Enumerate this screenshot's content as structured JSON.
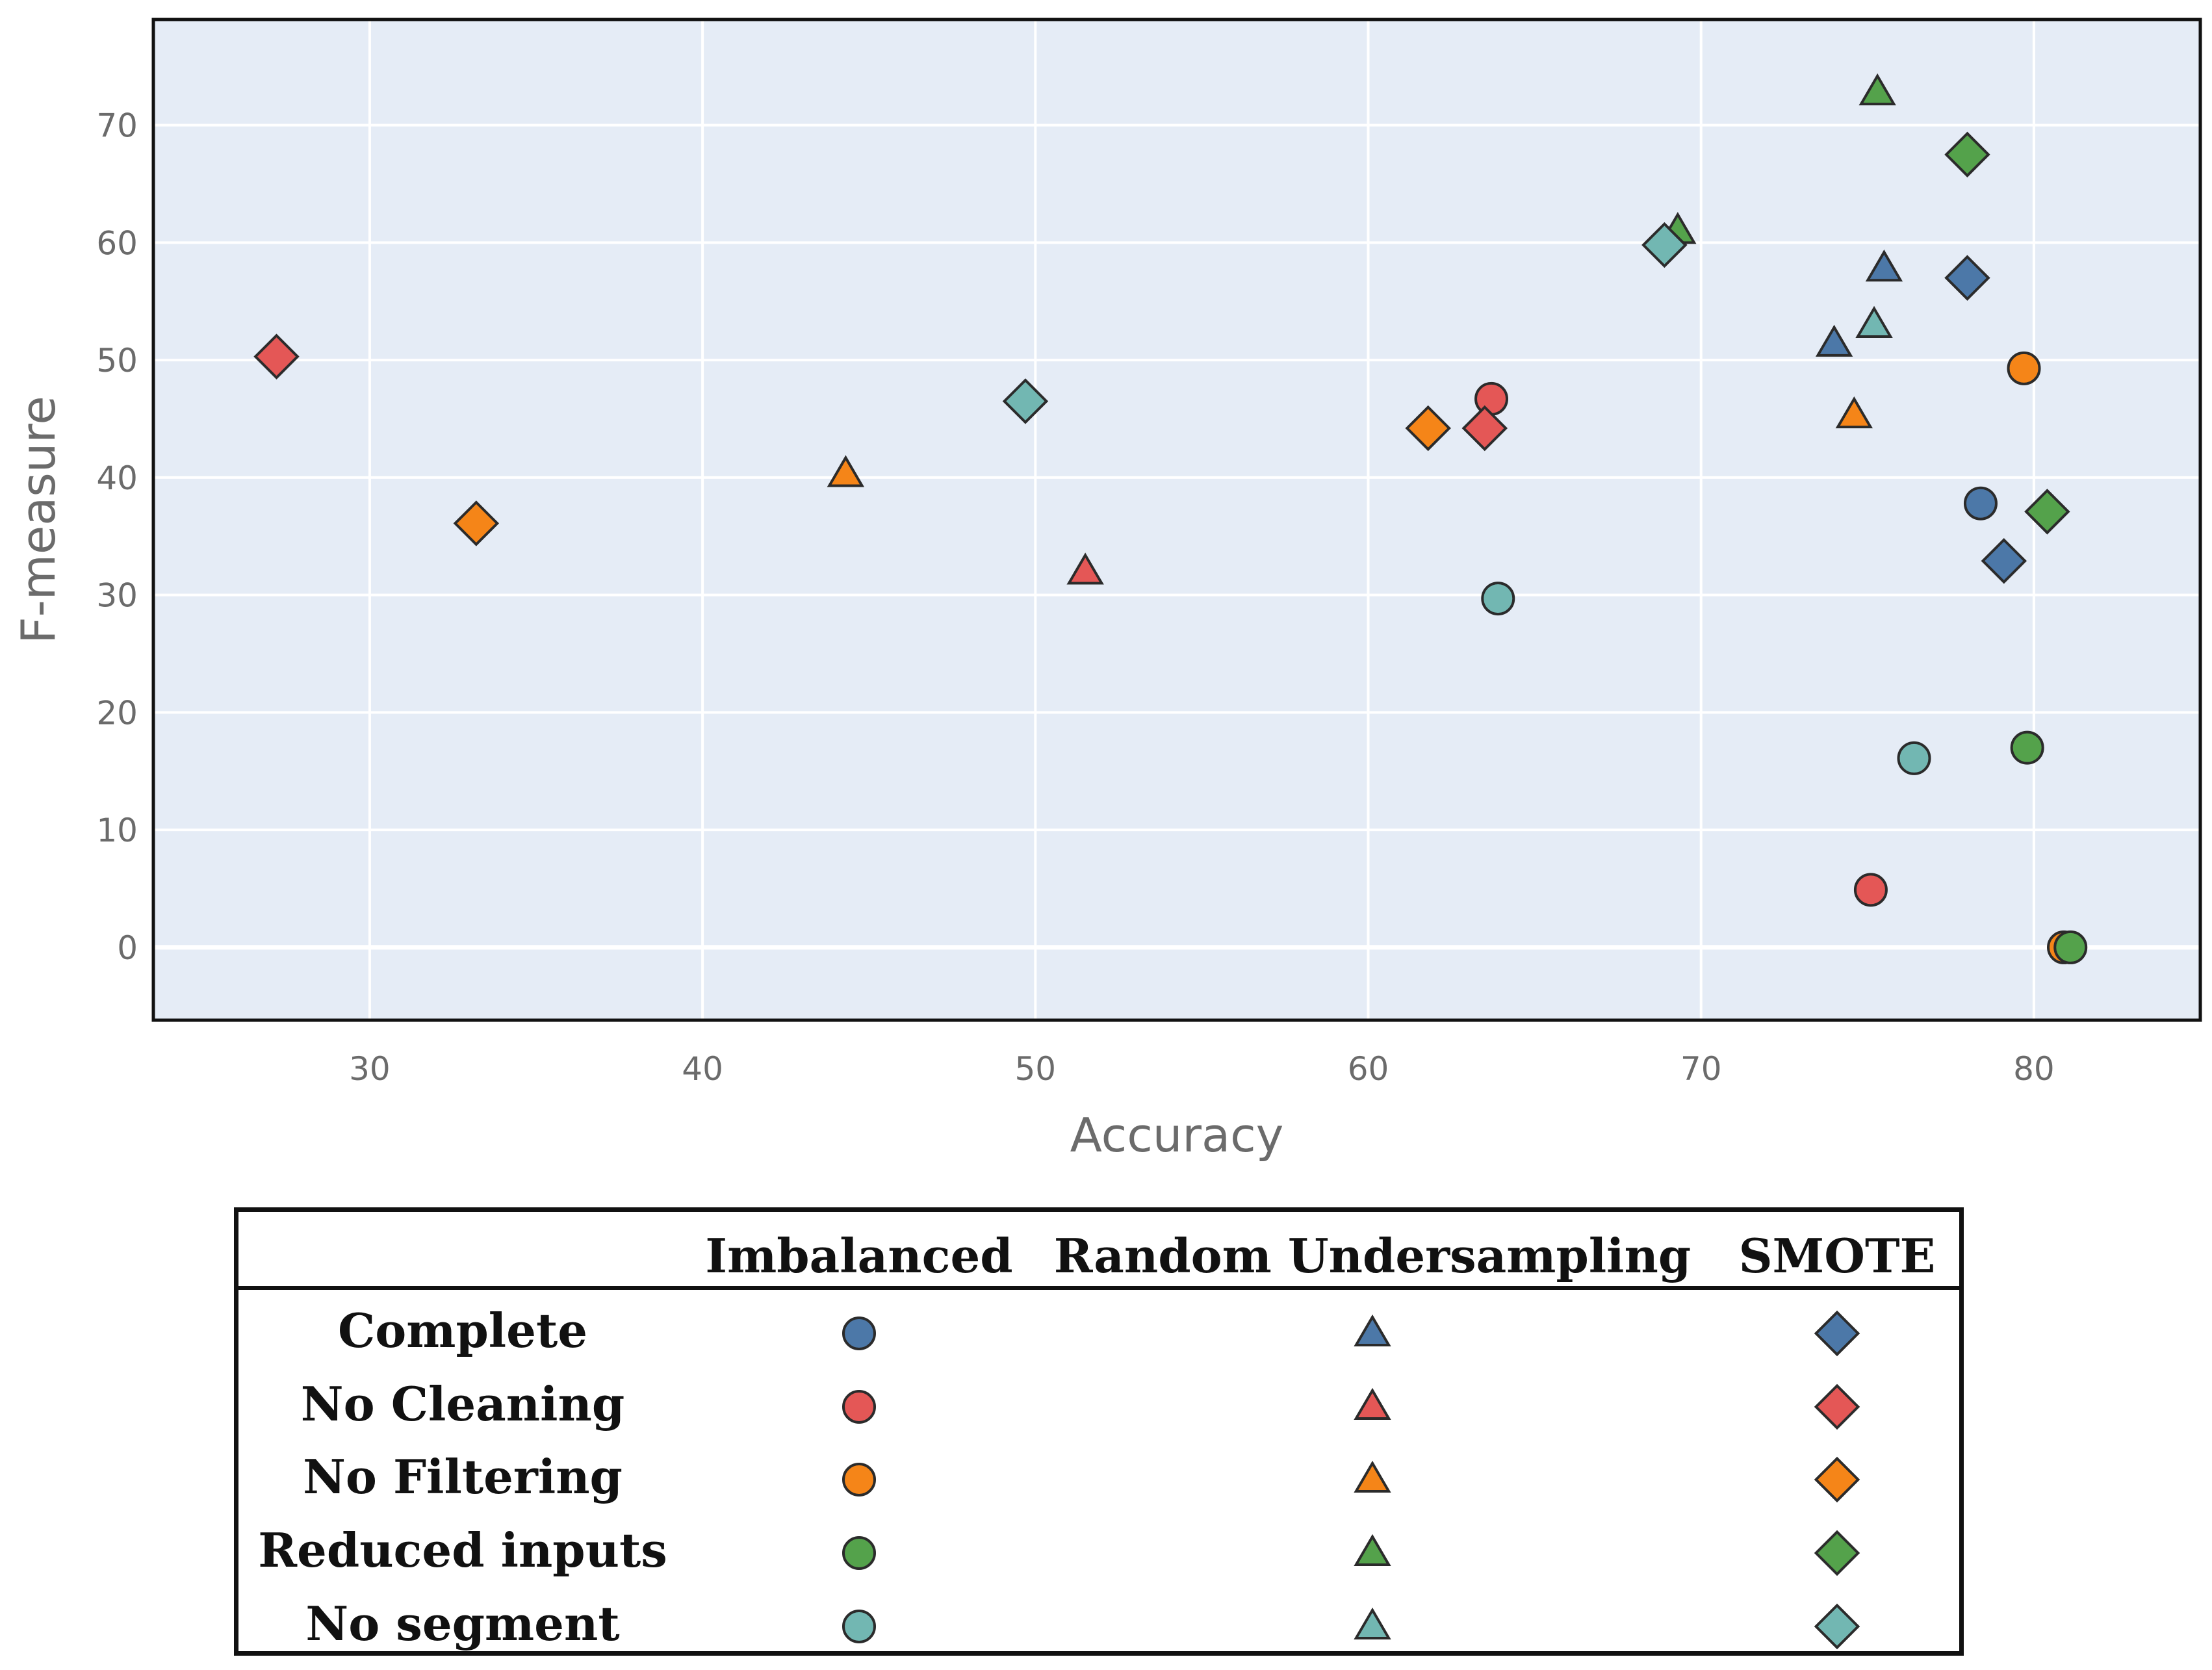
{
  "chart_data": {
    "type": "scatter",
    "xlabel": "Accuracy",
    "ylabel": "F-measure",
    "xlim": [
      23.5,
      85
    ],
    "ylim": [
      -6.2,
      79
    ],
    "x_ticks": [
      30,
      40,
      50,
      60,
      70,
      80
    ],
    "y_ticks": [
      0,
      10,
      20,
      30,
      40,
      50,
      60,
      70
    ],
    "grid": true,
    "plot_background": "#e5ecf6",
    "colors": {
      "Complete": "#4c78a8",
      "No Cleaning": "#e45756",
      "No Filtering": "#f58518",
      "Reduced inputs": "#54a24b",
      "No segment": "#72b7b2"
    },
    "markers": {
      "Imbalanced": "circle",
      "Random Undersampling": "triangle",
      "SMOTE": "diamond"
    },
    "points": [
      {
        "config": "Complete",
        "method": "Imbalanced",
        "x": 78.4,
        "y": 37.8
      },
      {
        "config": "Complete",
        "method": "Random Undersampling",
        "x": 75.5,
        "y": 57.8
      },
      {
        "config": "Complete",
        "method": "Random Undersampling",
        "x": 74.0,
        "y": 51.4
      },
      {
        "config": "Complete",
        "method": "SMOTE",
        "x": 78.0,
        "y": 57.0
      },
      {
        "config": "Complete",
        "method": "SMOTE",
        "x": 79.1,
        "y": 32.9
      },
      {
        "config": "No Cleaning",
        "method": "Imbalanced",
        "x": 63.7,
        "y": 46.7
      },
      {
        "config": "No Cleaning",
        "method": "Imbalanced",
        "x": 75.1,
        "y": 4.9
      },
      {
        "config": "No Cleaning",
        "method": "Random Undersampling",
        "x": 51.5,
        "y": 32.0
      },
      {
        "config": "No Cleaning",
        "method": "SMOTE",
        "x": 27.2,
        "y": 50.3
      },
      {
        "config": "No Cleaning",
        "method": "SMOTE",
        "x": 63.5,
        "y": 44.2
      },
      {
        "config": "No Filtering",
        "method": "Imbalanced",
        "x": 79.7,
        "y": 49.3
      },
      {
        "config": "No Filtering",
        "method": "Imbalanced",
        "x": 80.9,
        "y": 0.0
      },
      {
        "config": "No Filtering",
        "method": "Random Undersampling",
        "x": 44.3,
        "y": 40.3
      },
      {
        "config": "No Filtering",
        "method": "Random Undersampling",
        "x": 74.6,
        "y": 45.3
      },
      {
        "config": "No Filtering",
        "method": "SMOTE",
        "x": 33.2,
        "y": 36.1
      },
      {
        "config": "No Filtering",
        "method": "SMOTE",
        "x": 61.8,
        "y": 44.2
      },
      {
        "config": "Reduced inputs",
        "method": "Imbalanced",
        "x": 79.8,
        "y": 17.0
      },
      {
        "config": "Reduced inputs",
        "method": "Imbalanced",
        "x": 81.1,
        "y": 0.0
      },
      {
        "config": "Reduced inputs",
        "method": "Random Undersampling",
        "x": 75.3,
        "y": 72.8
      },
      {
        "config": "Reduced inputs",
        "method": "Random Undersampling",
        "x": 69.3,
        "y": 61.0
      },
      {
        "config": "Reduced inputs",
        "method": "SMOTE",
        "x": 78.0,
        "y": 67.5
      },
      {
        "config": "Reduced inputs",
        "method": "SMOTE",
        "x": 80.4,
        "y": 37.1
      },
      {
        "config": "No segment",
        "method": "Imbalanced",
        "x": 63.9,
        "y": 29.7
      },
      {
        "config": "No segment",
        "method": "Imbalanced",
        "x": 76.4,
        "y": 16.1
      },
      {
        "config": "No segment",
        "method": "Random Undersampling",
        "x": 75.2,
        "y": 53.0
      },
      {
        "config": "No segment",
        "method": "SMOTE",
        "x": 49.7,
        "y": 46.5
      },
      {
        "config": "No segment",
        "method": "SMOTE",
        "x": 68.9,
        "y": 59.8
      }
    ]
  },
  "legend": {
    "columns": [
      "Imbalanced",
      "Random Undersampling",
      "SMOTE"
    ],
    "rows": [
      "Complete",
      "No Cleaning",
      "No Filtering",
      "Reduced inputs",
      "No segment"
    ]
  }
}
